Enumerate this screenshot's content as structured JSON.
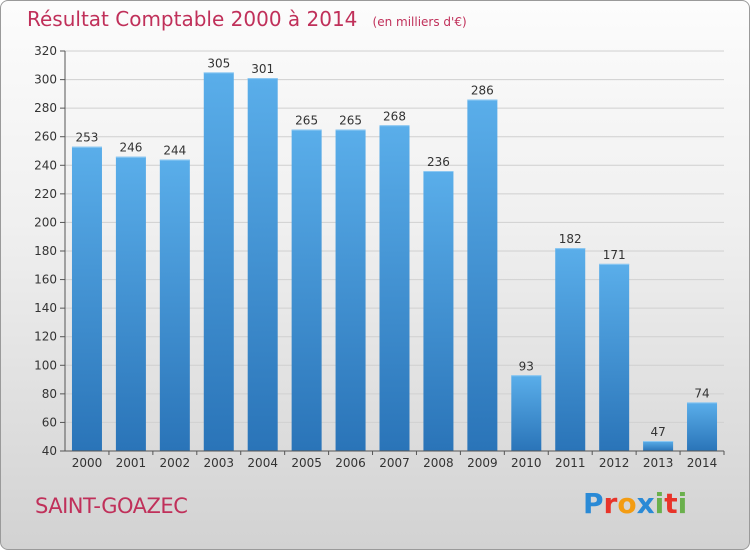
{
  "title": "Résultat Comptable 2000 à 2014",
  "unit": "(en milliers d'€)",
  "commune": "SAINT-GOAZEC",
  "brand": {
    "letters": [
      "P",
      "r",
      "o",
      "x",
      "i",
      "t",
      "i"
    ],
    "colors": [
      "#2a8ad6",
      "#e8342a",
      "#f39c12",
      "#2a8ad6",
      "#6ab04c",
      "#e8342a",
      "#6ab04c"
    ]
  },
  "colors": {
    "bar_top": "#5aaeea",
    "bar_bottom": "#2a74b8",
    "title": "#c0305a",
    "grid": "#d0d0d0"
  },
  "chart_data": {
    "type": "bar",
    "categories": [
      "2000",
      "2001",
      "2002",
      "2003",
      "2004",
      "2005",
      "2006",
      "2007",
      "2008",
      "2009",
      "2010",
      "2011",
      "2012",
      "2013",
      "2014"
    ],
    "values": [
      253,
      246,
      244,
      305,
      301,
      265,
      265,
      268,
      236,
      286,
      93,
      182,
      171,
      47,
      74
    ],
    "ylim": [
      40,
      320
    ],
    "yticks": [
      40,
      60,
      80,
      100,
      120,
      140,
      160,
      180,
      200,
      220,
      240,
      260,
      280,
      300,
      320
    ],
    "grid": true,
    "xlabel": "",
    "ylabel": ""
  }
}
